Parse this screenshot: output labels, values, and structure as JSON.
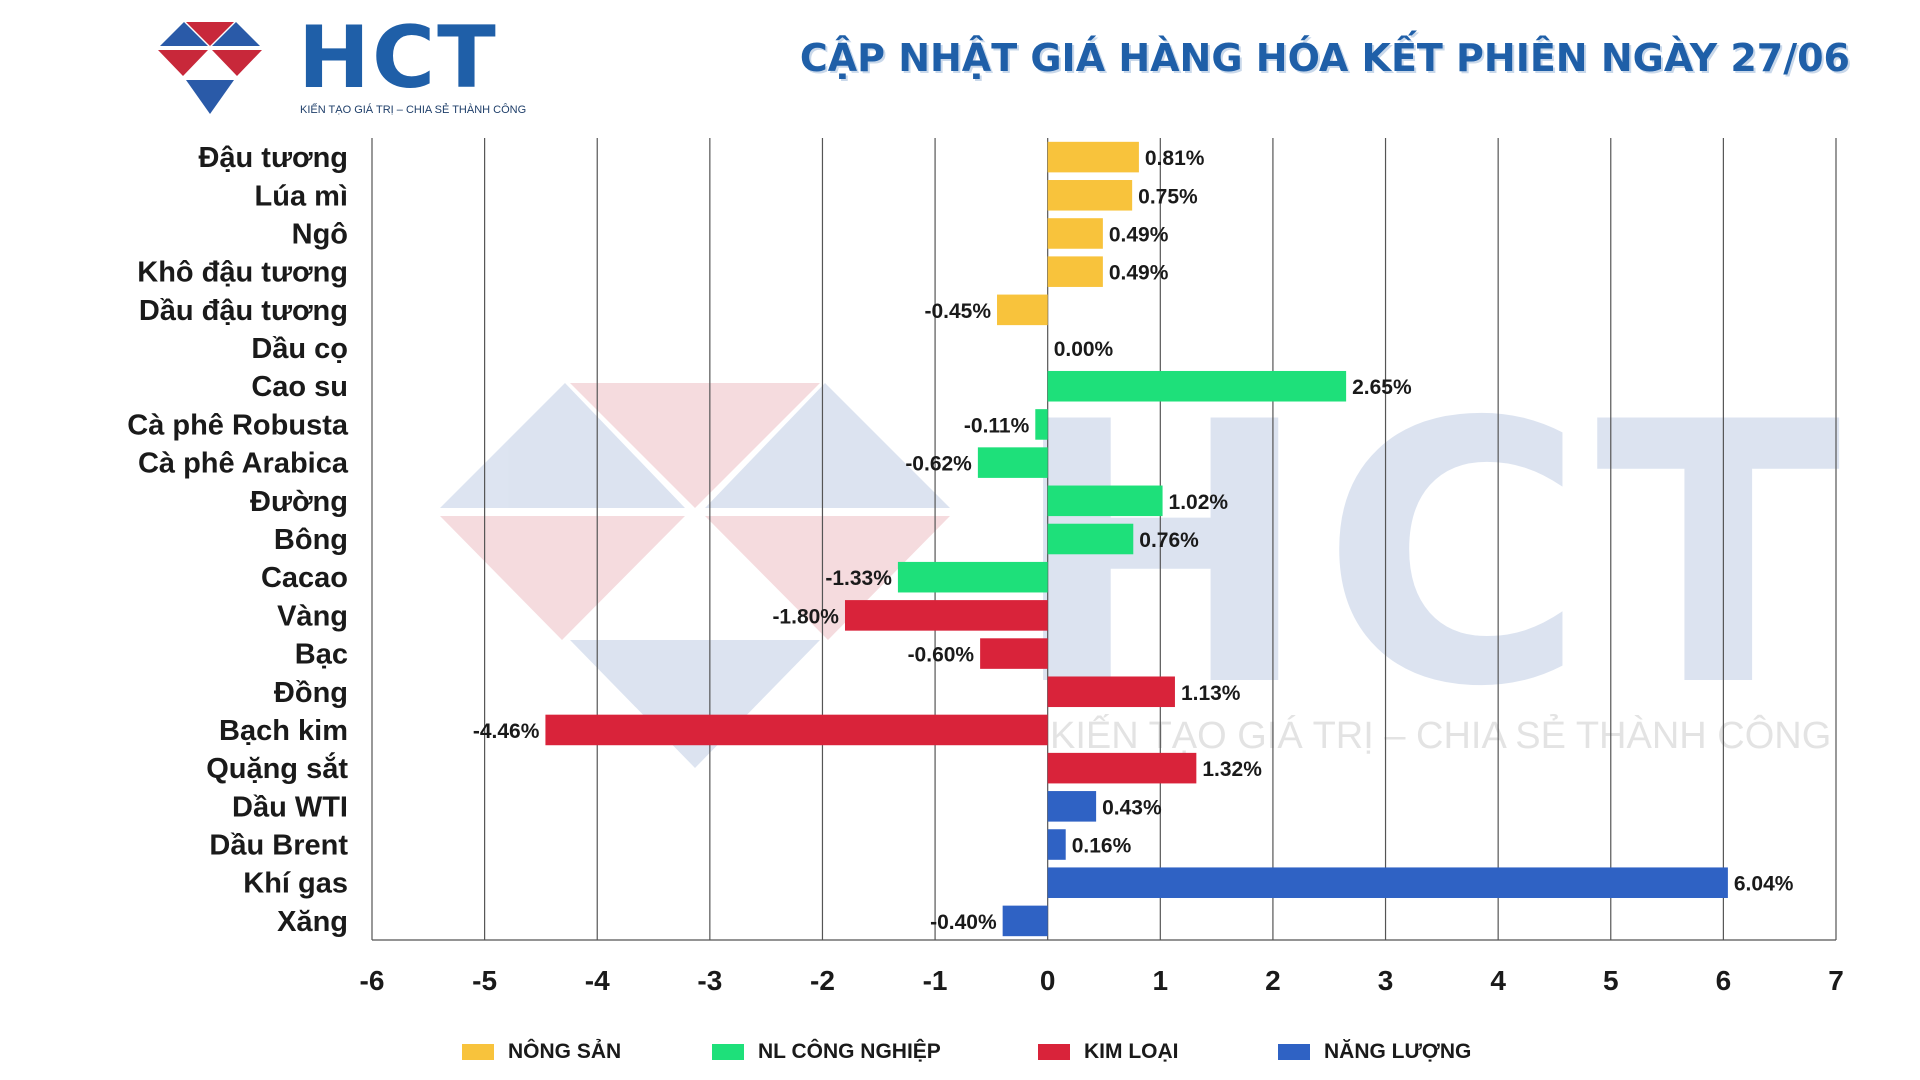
{
  "header": {
    "brand": "HCT",
    "tagline": "KIẾN TẠO GIÁ TRỊ – CHIA SẺ THÀNH CÔNG",
    "title": "CẬP NHẬT GIÁ HÀNG HÓA KẾT PHIÊN NGÀY 27/06"
  },
  "watermark": {
    "brand": "HCT",
    "tagline": "KIẾN TẠO GIÁ TRỊ – CHIA SẺ THÀNH CÔNG"
  },
  "colors": {
    "nong_san": "#f8c33c",
    "nl_cong_nghiep": "#1ee07a",
    "kim_loai": "#d9233a",
    "nang_luong": "#2f62c4",
    "title": "#1f5fa8",
    "grid": "#555555"
  },
  "chart_data": {
    "type": "bar",
    "orientation": "horizontal",
    "title": "CẬP NHẬT GIÁ HÀNG HÓA KẾT PHIÊN NGÀY 27/06",
    "xlim": [
      -6,
      7
    ],
    "xticks": [
      -6,
      -5,
      -4,
      -3,
      -2,
      -1,
      0,
      1,
      2,
      3,
      4,
      5,
      6,
      7
    ],
    "grid": "vertical",
    "legend_position": "bottom",
    "groups": [
      {
        "name": "NÔNG SẢN",
        "color": "#f8c33c"
      },
      {
        "name": "NL CÔNG NGHIỆP",
        "color": "#1ee07a"
      },
      {
        "name": "KIM LOẠI",
        "color": "#d9233a"
      },
      {
        "name": "NĂNG LƯỢNG",
        "color": "#2f62c4"
      }
    ],
    "items": [
      {
        "category": "Đậu tương",
        "value": 0.81,
        "label": "0.81%",
        "group": 0
      },
      {
        "category": "Lúa mì",
        "value": 0.75,
        "label": "0.75%",
        "group": 0
      },
      {
        "category": "Ngô",
        "value": 0.49,
        "label": "0.49%",
        "group": 0
      },
      {
        "category": "Khô đậu tương",
        "value": 0.49,
        "label": "0.49%",
        "group": 0
      },
      {
        "category": "Dầu đậu tương",
        "value": -0.45,
        "label": "-0.45%",
        "group": 0
      },
      {
        "category": "Dầu cọ",
        "value": 0.0,
        "label": "0.00%",
        "group": 0
      },
      {
        "category": "Cao su",
        "value": 2.65,
        "label": "2.65%",
        "group": 1
      },
      {
        "category": "Cà phê Robusta",
        "value": -0.11,
        "label": "-0.11%",
        "group": 1
      },
      {
        "category": "Cà phê Arabica",
        "value": -0.62,
        "label": "-0.62%",
        "group": 1
      },
      {
        "category": "Đường",
        "value": 1.02,
        "label": "1.02%",
        "group": 1
      },
      {
        "category": "Bông",
        "value": 0.76,
        "label": "0.76%",
        "group": 1
      },
      {
        "category": "Cacao",
        "value": -1.33,
        "label": "-1.33%",
        "group": 1
      },
      {
        "category": "Vàng",
        "value": -1.8,
        "label": "-1.80%",
        "group": 2
      },
      {
        "category": "Bạc",
        "value": -0.6,
        "label": "-0.60%",
        "group": 2
      },
      {
        "category": "Đồng",
        "value": 1.13,
        "label": "1.13%",
        "group": 2
      },
      {
        "category": "Bạch kim",
        "value": -4.46,
        "label": "-4.46%",
        "group": 2
      },
      {
        "category": "Quặng sắt",
        "value": 1.32,
        "label": "1.32%",
        "group": 2
      },
      {
        "category": "Dầu WTI",
        "value": 0.43,
        "label": "0.43%",
        "group": 3
      },
      {
        "category": "Dầu Brent",
        "value": 0.16,
        "label": "0.16%",
        "group": 3
      },
      {
        "category": "Khí gas",
        "value": 6.04,
        "label": "6.04%",
        "group": 3
      },
      {
        "category": "Xăng",
        "value": -0.4,
        "label": "-0.40%",
        "group": 3
      }
    ]
  }
}
